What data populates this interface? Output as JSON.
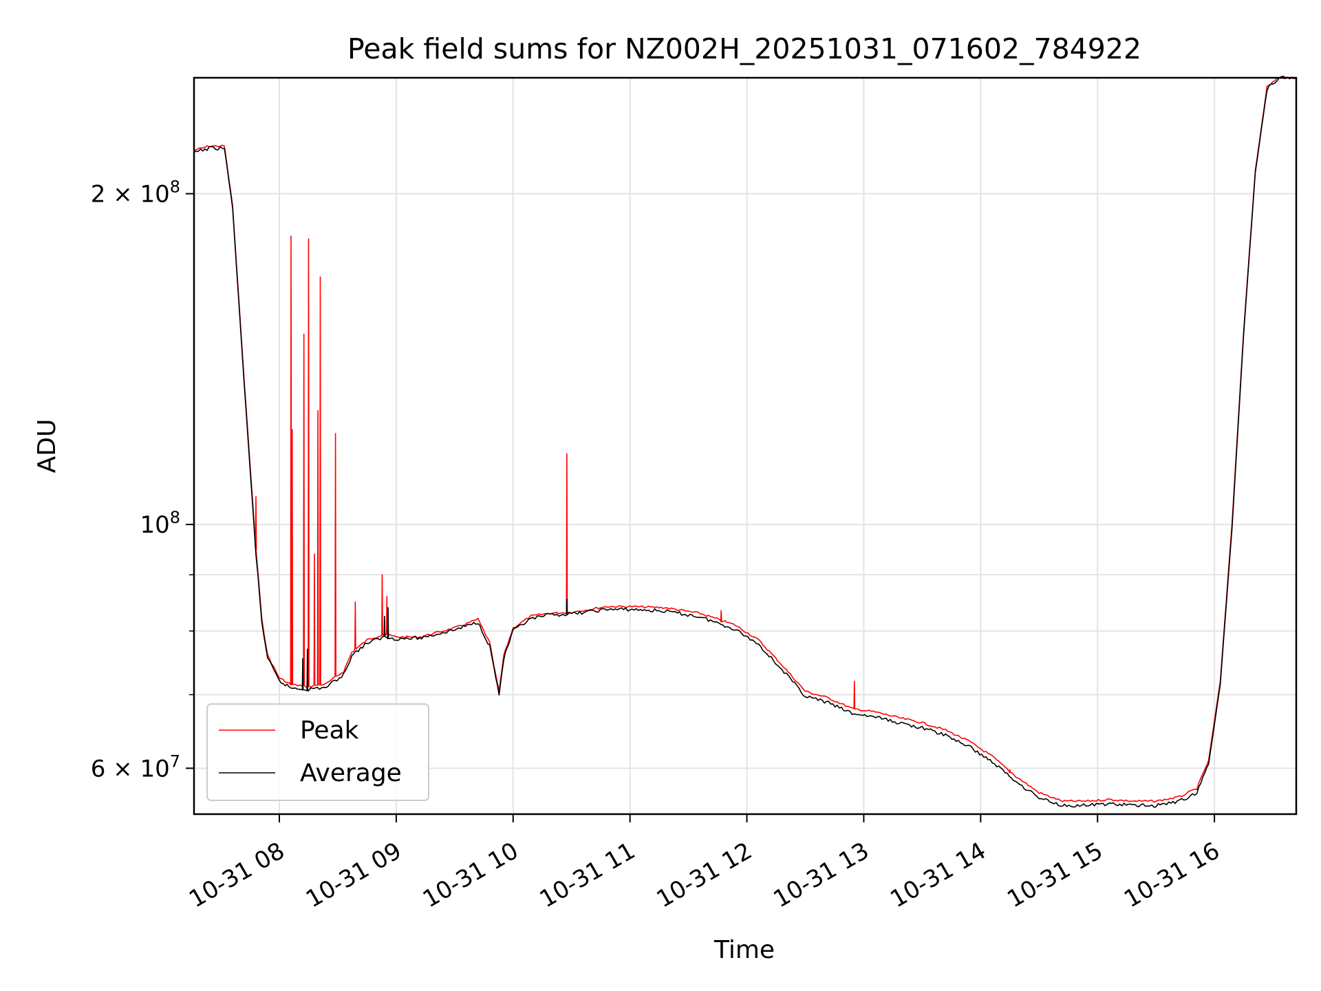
{
  "chart_data": {
    "type": "line",
    "title": "Peak field sums for NZ002H_20251031_071602_784922",
    "xlabel": "Time",
    "ylabel": "ADU",
    "x_unit": "hours since 10-31 00:00",
    "xlim": [
      7.27,
      16.7
    ],
    "ylim": [
      54500000,
      255000000
    ],
    "yscale": "log",
    "grid": true,
    "legend_position": "lower-left",
    "x_ticks": [
      {
        "value": 8,
        "label": "10-31 08"
      },
      {
        "value": 9,
        "label": "10-31 09"
      },
      {
        "value": 10,
        "label": "10-31 10"
      },
      {
        "value": 11,
        "label": "10-31 11"
      },
      {
        "value": 12,
        "label": "10-31 12"
      },
      {
        "value": 13,
        "label": "10-31 13"
      },
      {
        "value": 14,
        "label": "10-31 14"
      },
      {
        "value": 15,
        "label": "10-31 15"
      },
      {
        "value": 16,
        "label": "10-31 16"
      }
    ],
    "y_ticks": [
      {
        "value": 200000000,
        "base": "2 × 10",
        "exp": "8"
      },
      {
        "value": 100000000,
        "base": "10",
        "exp": "8"
      },
      {
        "value": 60000000,
        "base": "6 × 10",
        "exp": "7"
      }
    ],
    "y_minor_ticks": [
      70000000,
      80000000,
      90000000
    ],
    "series": [
      {
        "name": "Peak",
        "color": "#ff0000",
        "x": [
          7.27,
          7.4,
          7.53,
          7.6,
          7.7,
          7.8,
          7.85,
          7.9,
          8.0,
          8.1,
          8.25,
          8.4,
          8.55,
          8.62,
          8.75,
          8.9,
          9.0,
          9.2,
          9.5,
          9.7,
          9.8,
          9.85,
          9.88,
          9.92,
          10.0,
          10.15,
          10.3,
          10.5,
          10.8,
          11.0,
          11.3,
          11.6,
          11.9,
          12.1,
          12.3,
          12.5,
          12.7,
          12.9,
          13.1,
          13.3,
          13.5,
          13.7,
          13.9,
          14.1,
          14.3,
          14.5,
          14.7,
          14.9,
          15.1,
          15.3,
          15.5,
          15.7,
          15.85,
          15.95,
          16.05,
          16.15,
          16.25,
          16.35,
          16.45,
          16.55,
          16.7
        ],
        "y": [
          219000000,
          221000000,
          221000000,
          195000000,
          135000000,
          95000000,
          82000000,
          76000000,
          72500000,
          71500000,
          71200000,
          71600000,
          73500000,
          76500000,
          78500000,
          79500000,
          79000000,
          79000000,
          80500000,
          82000000,
          78000000,
          73000000,
          70500000,
          76000000,
          80500000,
          82500000,
          83000000,
          83200000,
          84200000,
          84200000,
          84000000,
          83000000,
          81000000,
          78500000,
          74500000,
          70500000,
          69500000,
          68000000,
          67500000,
          66700000,
          66000000,
          65000000,
          63500000,
          61500000,
          59000000,
          57000000,
          56000000,
          56000000,
          56200000,
          56000000,
          56000000,
          56500000,
          57500000,
          61000000,
          72000000,
          100000000,
          150000000,
          210000000,
          250000000,
          255000000,
          255000000
        ],
        "spikes": [
          {
            "x": 7.8,
            "y": 106000000
          },
          {
            "x": 8.1,
            "y": 183000000
          },
          {
            "x": 8.11,
            "y": 122000000
          },
          {
            "x": 8.21,
            "y": 149000000
          },
          {
            "x": 8.25,
            "y": 182000000
          },
          {
            "x": 8.3,
            "y": 94000000
          },
          {
            "x": 8.33,
            "y": 127000000
          },
          {
            "x": 8.35,
            "y": 168000000
          },
          {
            "x": 8.48,
            "y": 121000000
          },
          {
            "x": 8.65,
            "y": 85000000
          },
          {
            "x": 8.88,
            "y": 90000000
          },
          {
            "x": 8.92,
            "y": 86000000
          },
          {
            "x": 10.46,
            "y": 116000000
          },
          {
            "x": 11.78,
            "y": 83500000
          },
          {
            "x": 12.92,
            "y": 72000000
          },
          {
            "x": 14.25,
            "y": 59800000
          }
        ]
      },
      {
        "name": "Average",
        "color": "#000000",
        "x": [
          7.27,
          7.4,
          7.53,
          7.6,
          7.7,
          7.8,
          7.85,
          7.9,
          8.0,
          8.1,
          8.25,
          8.4,
          8.55,
          8.62,
          8.75,
          8.9,
          9.0,
          9.2,
          9.5,
          9.7,
          9.8,
          9.85,
          9.88,
          9.92,
          10.0,
          10.15,
          10.3,
          10.5,
          10.8,
          11.0,
          11.3,
          11.6,
          11.9,
          12.1,
          12.3,
          12.5,
          12.7,
          12.9,
          13.1,
          13.3,
          13.5,
          13.7,
          13.9,
          14.1,
          14.3,
          14.5,
          14.7,
          14.9,
          15.1,
          15.3,
          15.5,
          15.7,
          15.85,
          15.95,
          16.05,
          16.15,
          16.25,
          16.35,
          16.45,
          16.55,
          16.7
        ],
        "y": [
          218000000,
          220000000,
          220000000,
          194000000,
          134000000,
          94000000,
          81500000,
          75500000,
          72000000,
          71000000,
          70800000,
          71100000,
          73000000,
          76000000,
          78000000,
          79000000,
          78700000,
          78800000,
          80200000,
          81500000,
          77500000,
          72800000,
          70000000,
          75500000,
          80000000,
          82000000,
          82700000,
          82900000,
          83700000,
          83700000,
          83400000,
          82400000,
          80300000,
          77800000,
          73800000,
          69800000,
          68800000,
          67300000,
          66800000,
          66000000,
          65300000,
          64300000,
          62800000,
          60800000,
          58400000,
          56400000,
          55500000,
          55500000,
          55700000,
          55500000,
          55500000,
          56000000,
          57000000,
          60500000,
          71500000,
          99000000,
          149000000,
          209000000,
          249000000,
          255000000,
          255000000
        ],
        "spikes": [
          {
            "x": 8.2,
            "y": 75500000
          },
          {
            "x": 8.24,
            "y": 77000000
          },
          {
            "x": 8.9,
            "y": 82500000
          },
          {
            "x": 8.93,
            "y": 84000000
          },
          {
            "x": 10.46,
            "y": 85500000
          }
        ]
      }
    ]
  }
}
